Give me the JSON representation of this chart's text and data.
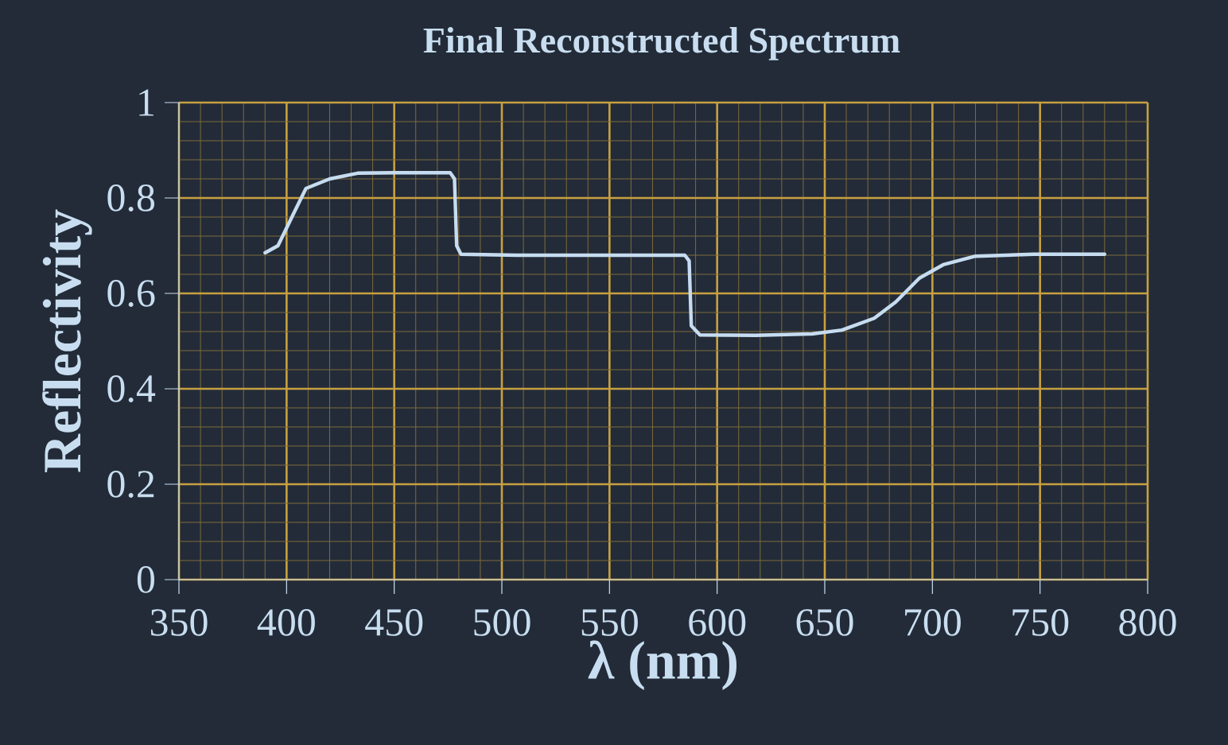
{
  "chart_data": {
    "type": "line",
    "title": "Final Reconstructed Spectrum",
    "xlabel": "λ (nm)",
    "ylabel": "Reflectivity",
    "x": [
      390,
      396,
      403,
      409,
      420,
      433,
      450,
      476,
      478,
      479,
      481,
      507,
      585,
      587,
      588,
      592,
      618,
      644,
      658,
      673,
      683,
      694,
      705,
      720,
      747,
      780
    ],
    "values": [
      0.685,
      0.7,
      0.765,
      0.82,
      0.84,
      0.852,
      0.853,
      0.853,
      0.84,
      0.7,
      0.682,
      0.68,
      0.68,
      0.668,
      0.532,
      0.513,
      0.512,
      0.515,
      0.523,
      0.548,
      0.582,
      0.632,
      0.66,
      0.678,
      0.682,
      0.682
    ],
    "color": "#c6dcf0",
    "xlim": [
      350,
      800
    ],
    "ylim": [
      0,
      1
    ],
    "xticks": [
      350,
      {
        "value": 360,
        "label": null
      },
      {
        "value": 370,
        "label": null
      },
      {
        "value": 380,
        "label": null
      },
      {
        "value": 390,
        "label": null
      },
      400,
      {
        "value": 410,
        "label": null
      },
      {
        "value": 420,
        "label": null
      },
      {
        "value": 430,
        "label": null
      },
      {
        "value": 440,
        "label": null
      },
      450,
      {
        "value": 460,
        "label": null
      },
      {
        "value": 470,
        "label": null
      },
      {
        "value": 480,
        "label": null
      },
      {
        "value": 490,
        "label": null
      },
      500,
      {
        "value": 510,
        "label": null
      },
      {
        "value": 520,
        "label": null
      },
      {
        "value": 530,
        "label": null
      },
      {
        "value": 540,
        "label": null
      },
      550,
      {
        "value": 560,
        "label": null
      },
      {
        "value": 570,
        "label": null
      },
      {
        "value": 580,
        "label": null
      },
      {
        "value": 590,
        "label": null
      },
      600,
      {
        "value": 610,
        "label": null
      },
      {
        "value": 620,
        "label": null
      },
      {
        "value": 630,
        "label": null
      },
      {
        "value": 640,
        "label": null
      },
      650,
      {
        "value": 660,
        "label": null
      },
      {
        "value": 670,
        "label": null
      },
      {
        "value": 680,
        "label": null
      },
      {
        "value": 690,
        "label": null
      },
      700,
      {
        "value": 710,
        "label": null
      },
      {
        "value": 720,
        "label": null
      },
      {
        "value": 730,
        "label": null
      },
      {
        "value": 740,
        "label": null
      },
      750,
      {
        "value": 760,
        "label": null
      },
      {
        "value": 770,
        "label": null
      },
      {
        "value": 780,
        "label": null
      },
      {
        "value": 790,
        "label": null
      },
      800
    ],
    "yticks": [
      0,
      {
        "value": 0.04,
        "label": null
      },
      {
        "value": 0.08,
        "label": null
      },
      {
        "value": 0.12,
        "label": null
      },
      {
        "value": 0.16,
        "label": null
      },
      0.2,
      {
        "value": 0.24,
        "label": null
      },
      {
        "value": 0.28,
        "label": null
      },
      {
        "value": 0.32,
        "label": null
      },
      {
        "value": 0.36,
        "label": null
      },
      0.4,
      {
        "value": 0.44,
        "label": null
      },
      {
        "value": 0.48,
        "label": null
      },
      {
        "value": 0.52,
        "label": null
      },
      {
        "value": 0.56,
        "label": null
      },
      0.6,
      {
        "value": 0.64,
        "label": null
      },
      {
        "value": 0.68,
        "label": null
      },
      {
        "value": 0.72,
        "label": null
      },
      {
        "value": 0.76,
        "label": null
      },
      0.8,
      {
        "value": 0.84,
        "label": null
      },
      {
        "value": 0.88,
        "label": null
      },
      {
        "value": 0.92,
        "label": null
      },
      {
        "value": 0.96,
        "label": null
      },
      1
    ],
    "grid": true
  }
}
